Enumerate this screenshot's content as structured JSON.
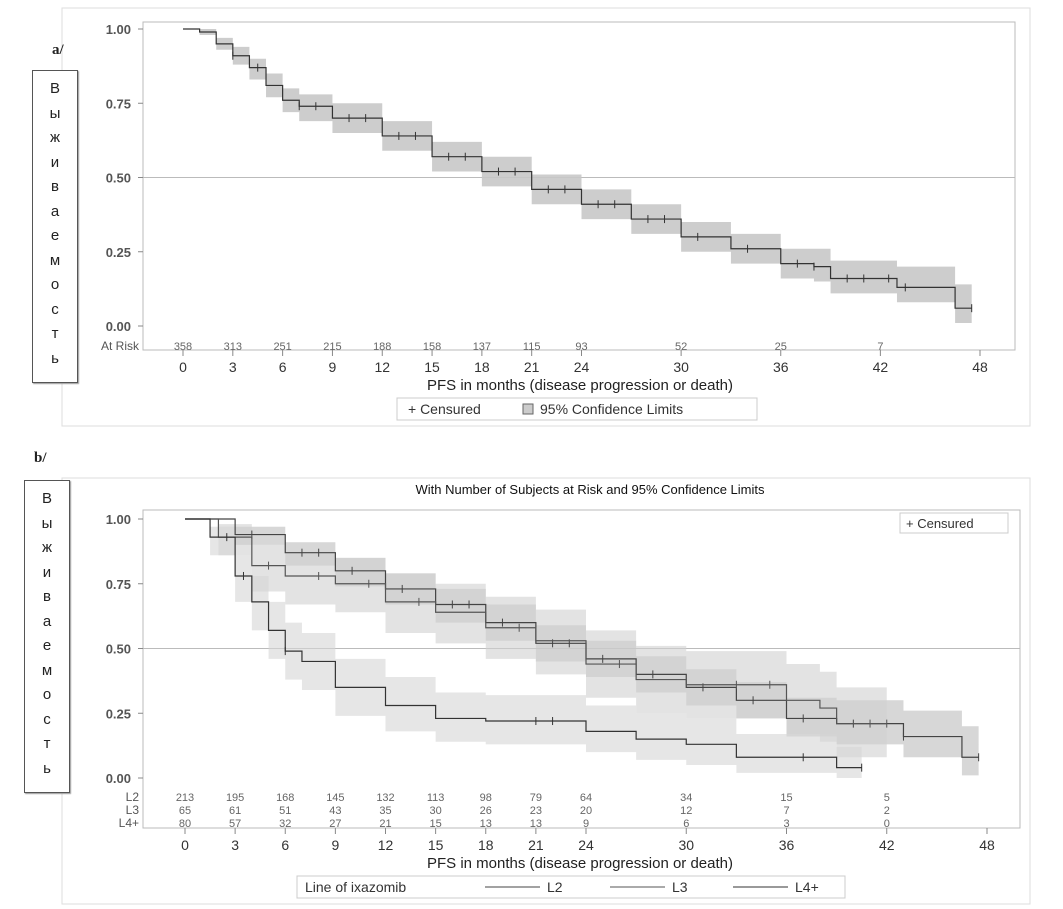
{
  "panel_labels": {
    "a": "a/",
    "b": "b/"
  },
  "y_axis_label_letters": [
    "В",
    "ы",
    "ж",
    "и",
    "в",
    "а",
    "е",
    "м",
    "о",
    "с",
    "т",
    "ь"
  ],
  "chart_data": [
    {
      "type": "line",
      "subtype": "kaplan-meier",
      "title": "",
      "xlabel": "PFS in months (disease progression or death)",
      "ylabel": "Выживаемость",
      "xlim": [
        0,
        48
      ],
      "ylim": [
        0,
        1
      ],
      "xticks": [
        0,
        3,
        6,
        9,
        12,
        15,
        18,
        21,
        24,
        30,
        36,
        42,
        48
      ],
      "yticks": [
        "0.00",
        "0.25",
        "0.50",
        "0.75",
        "1.00"
      ],
      "reference_line_y": 0.5,
      "at_risk_label": "At Risk",
      "at_risk_times": [
        0,
        3,
        6,
        9,
        12,
        15,
        18,
        21,
        24,
        30,
        36,
        42
      ],
      "at_risk": [
        {
          "label": "",
          "values": [
            358,
            313,
            251,
            215,
            188,
            158,
            137,
            115,
            93,
            52,
            25,
            7
          ]
        }
      ],
      "legend": {
        "position": "bottom",
        "items": [
          "+ Censured",
          "95% Confidence Limits"
        ]
      },
      "series": [
        {
          "color": "#333333",
          "band_color": "#c8c8c8",
          "x": [
            0,
            1,
            2,
            3,
            4,
            5,
            6,
            7,
            9,
            12,
            15,
            18,
            21,
            24,
            27,
            30,
            33,
            36,
            38,
            39,
            42,
            43,
            46,
            46.5,
            47.5
          ],
          "y": [
            1,
            0.99,
            0.95,
            0.91,
            0.87,
            0.81,
            0.76,
            0.74,
            0.7,
            0.64,
            0.57,
            0.52,
            0.46,
            0.41,
            0.36,
            0.3,
            0.26,
            0.21,
            0.2,
            0.16,
            0.16,
            0.13,
            0.13,
            0.06,
            0.06
          ],
          "ci_lower": [
            1,
            0.98,
            0.93,
            0.88,
            0.83,
            0.77,
            0.72,
            0.69,
            0.65,
            0.59,
            0.52,
            0.47,
            0.41,
            0.36,
            0.31,
            0.25,
            0.21,
            0.16,
            0.15,
            0.11,
            0.11,
            0.08,
            0.08,
            0.01,
            0.01
          ],
          "ci_upper": [
            1,
            1,
            0.97,
            0.94,
            0.9,
            0.85,
            0.8,
            0.78,
            0.75,
            0.69,
            0.62,
            0.57,
            0.51,
            0.46,
            0.41,
            0.35,
            0.31,
            0.26,
            0.26,
            0.22,
            0.22,
            0.2,
            0.2,
            0.14,
            0.14
          ],
          "censored_x": [
            3,
            4.5,
            7,
            8,
            10,
            11,
            13,
            14,
            16,
            17,
            19,
            20,
            22,
            23,
            25,
            26,
            28,
            29,
            31,
            34,
            37,
            38,
            40,
            41,
            42.5,
            43.5,
            47.5
          ]
        }
      ]
    },
    {
      "type": "line",
      "subtype": "kaplan-meier",
      "title": "With Number of Subjects at Risk and 95% Confidence Limits",
      "xlabel": "PFS in months (disease progression or death)",
      "ylabel": "Выживаемость",
      "xlim": [
        0,
        48
      ],
      "ylim": [
        0,
        1
      ],
      "xticks": [
        0,
        3,
        6,
        9,
        12,
        15,
        18,
        21,
        24,
        30,
        36,
        42,
        48
      ],
      "yticks": [
        "0.00",
        "0.25",
        "0.50",
        "0.75",
        "1.00"
      ],
      "reference_line_y": 0.5,
      "at_risk_times": [
        0,
        3,
        6,
        9,
        12,
        15,
        18,
        21,
        24,
        30,
        36,
        42
      ],
      "at_risk": [
        {
          "label": "L2",
          "values": [
            213,
            195,
            168,
            145,
            132,
            113,
            98,
            79,
            64,
            34,
            15,
            5
          ]
        },
        {
          "label": "L3",
          "values": [
            65,
            61,
            51,
            43,
            35,
            30,
            26,
            23,
            20,
            12,
            7,
            2
          ]
        },
        {
          "label": "L4+",
          "values": [
            80,
            57,
            32,
            27,
            21,
            15,
            13,
            13,
            9,
            6,
            3,
            0
          ]
        }
      ],
      "censored_legend": "+ Censured",
      "legend": {
        "position": "bottom",
        "title": "Line of ixazomib",
        "items": [
          "L2",
          "L3",
          "L4+"
        ]
      },
      "series": [
        {
          "name": "L2",
          "color": "#444444",
          "band_color": "#bdbdbd",
          "x": [
            0,
            3,
            6,
            9,
            12,
            15,
            18,
            21,
            24,
            27,
            30,
            33,
            36,
            39,
            42,
            43,
            46,
            46.5,
            47.5
          ],
          "y": [
            1,
            0.94,
            0.87,
            0.8,
            0.73,
            0.67,
            0.6,
            0.52,
            0.46,
            0.4,
            0.35,
            0.3,
            0.23,
            0.21,
            0.21,
            0.16,
            0.16,
            0.08,
            0.08
          ],
          "ci_lower": [
            1,
            0.9,
            0.82,
            0.74,
            0.67,
            0.6,
            0.53,
            0.45,
            0.39,
            0.33,
            0.28,
            0.23,
            0.16,
            0.13,
            0.13,
            0.08,
            0.08,
            0.01,
            0.01
          ],
          "ci_upper": [
            1,
            0.97,
            0.91,
            0.85,
            0.79,
            0.73,
            0.67,
            0.59,
            0.53,
            0.47,
            0.42,
            0.37,
            0.31,
            0.3,
            0.3,
            0.26,
            0.26,
            0.2,
            0.2
          ],
          "censored_x": [
            4,
            7,
            8,
            10,
            13,
            16,
            17,
            19,
            22,
            23,
            25,
            28,
            31,
            34,
            37,
            40,
            43,
            47.5
          ]
        },
        {
          "name": "L3",
          "color": "#555555",
          "band_color": "#d0d0d0",
          "x": [
            0,
            2,
            4,
            6,
            9,
            12,
            15,
            18,
            21,
            24,
            27,
            30,
            36,
            38,
            39,
            42
          ],
          "y": [
            1,
            0.93,
            0.82,
            0.78,
            0.75,
            0.68,
            0.64,
            0.58,
            0.53,
            0.44,
            0.38,
            0.36,
            0.3,
            0.27,
            0.21,
            0.21
          ],
          "ci_lower": [
            1,
            0.86,
            0.72,
            0.67,
            0.64,
            0.56,
            0.52,
            0.46,
            0.4,
            0.31,
            0.25,
            0.23,
            0.17,
            0.14,
            0.08,
            0.08
          ],
          "ci_upper": [
            1,
            0.98,
            0.9,
            0.87,
            0.85,
            0.79,
            0.75,
            0.7,
            0.65,
            0.57,
            0.51,
            0.49,
            0.44,
            0.41,
            0.35,
            0.35
          ],
          "censored_x": [
            5,
            8,
            11,
            14,
            20,
            26,
            33,
            35,
            41,
            42
          ]
        },
        {
          "name": "L4+",
          "color": "#333333",
          "band_color": "#d6d6d6",
          "x": [
            0,
            1.5,
            3,
            4,
            5,
            6,
            7,
            9,
            12,
            15,
            18,
            21,
            24,
            27,
            30,
            33,
            36,
            39,
            40.5
          ],
          "y": [
            1,
            0.93,
            0.78,
            0.68,
            0.57,
            0.49,
            0.45,
            0.35,
            0.28,
            0.23,
            0.22,
            0.22,
            0.18,
            0.15,
            0.13,
            0.08,
            0.08,
            0.04,
            0.04
          ],
          "ci_lower": [
            1,
            0.86,
            0.68,
            0.57,
            0.46,
            0.38,
            0.34,
            0.24,
            0.18,
            0.14,
            0.13,
            0.13,
            0.1,
            0.07,
            0.05,
            0.02,
            0.02,
            0,
            0
          ],
          "ci_upper": [
            1,
            0.97,
            0.86,
            0.78,
            0.68,
            0.6,
            0.56,
            0.46,
            0.39,
            0.33,
            0.32,
            0.32,
            0.28,
            0.25,
            0.23,
            0.17,
            0.17,
            0.12,
            0.12
          ],
          "censored_x": [
            2.5,
            3.5,
            6,
            21,
            22,
            37,
            40.5
          ]
        }
      ]
    }
  ]
}
